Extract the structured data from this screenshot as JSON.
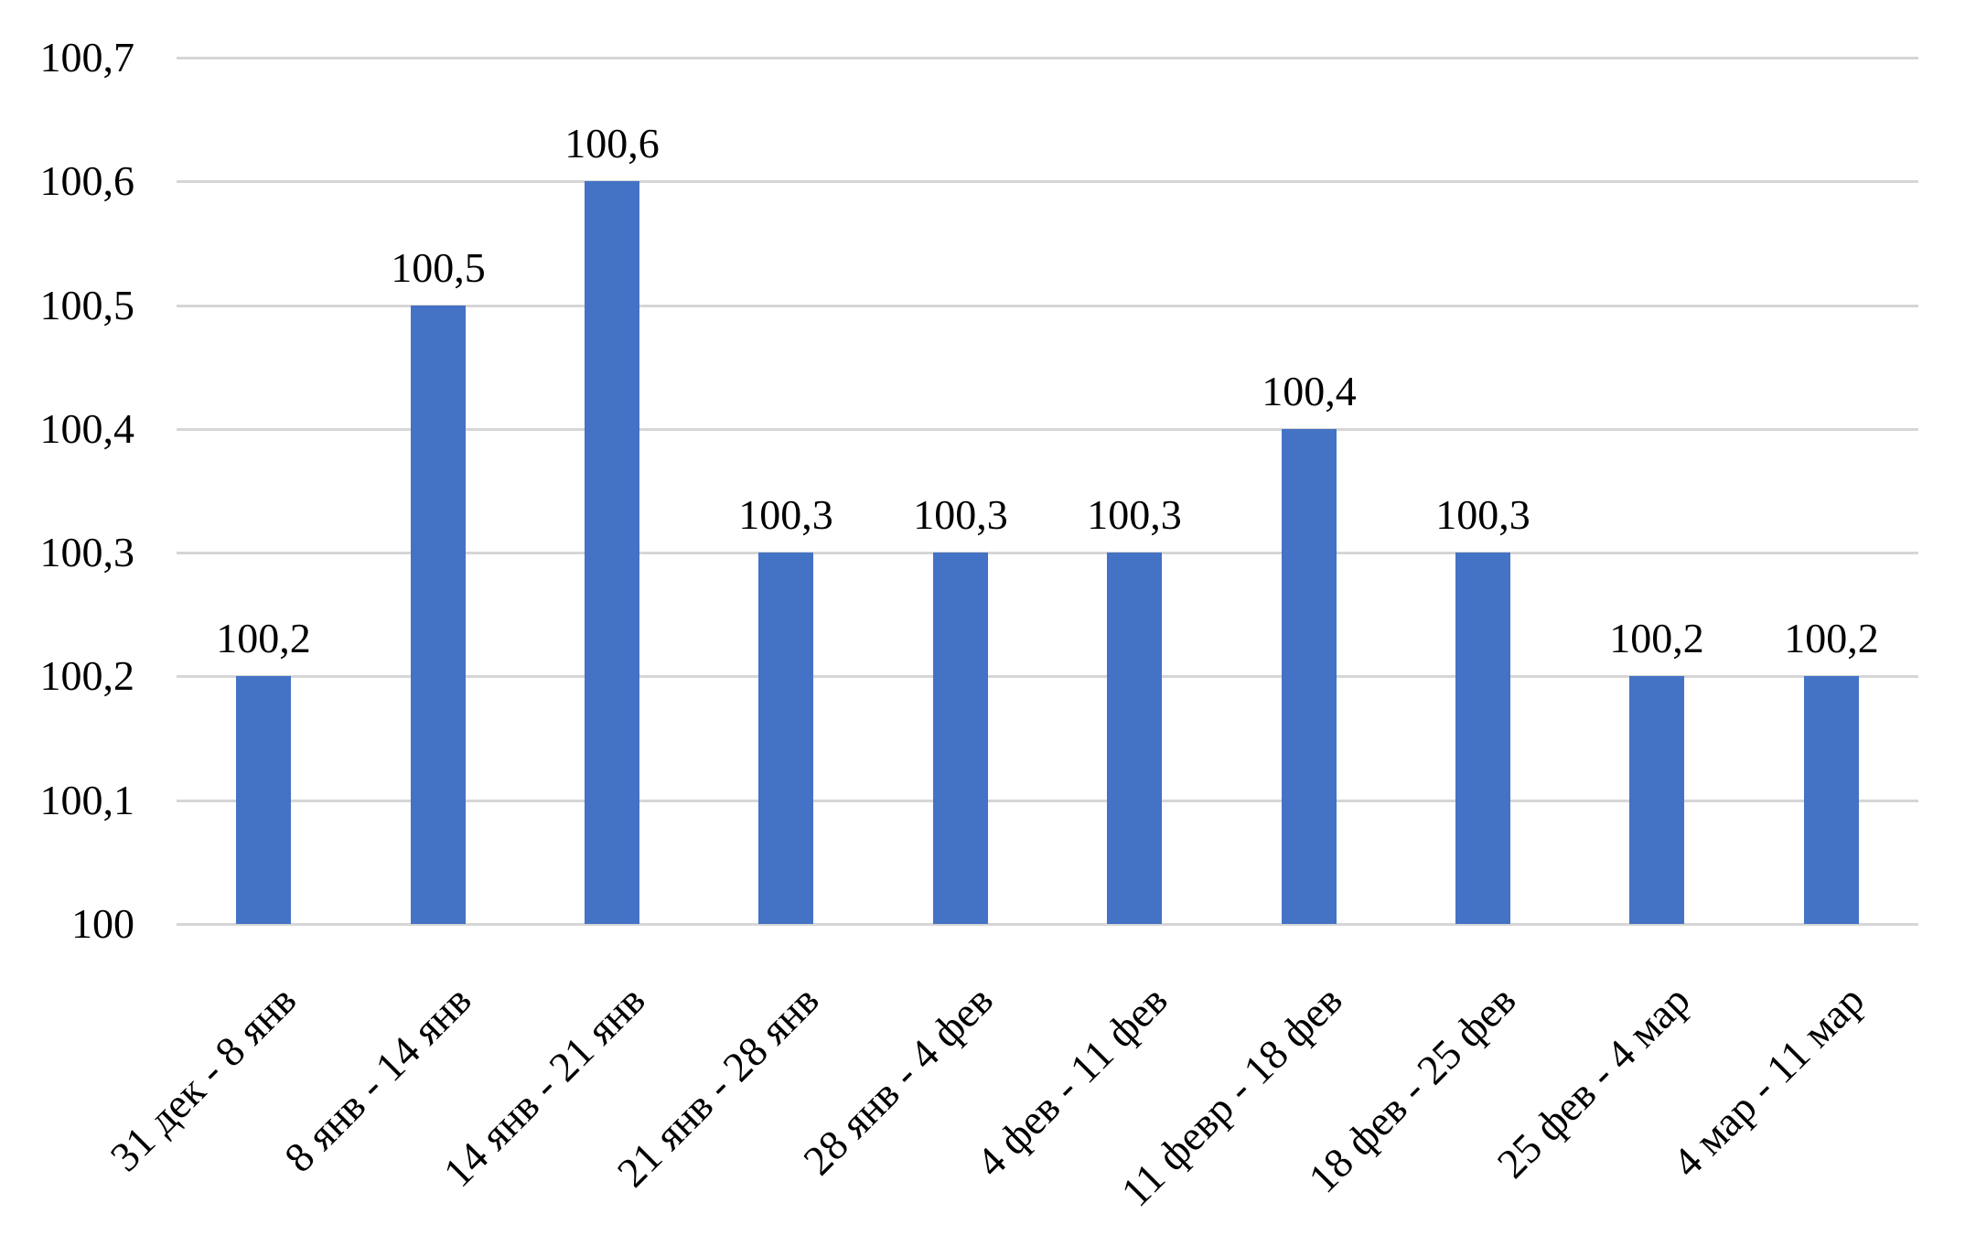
{
  "chart_data": {
    "type": "bar",
    "categories": [
      "31 дек - 8 янв",
      "8 янв - 14 янв",
      "14 янв - 21 янв",
      "21 янв - 28 янв",
      "28 янв - 4 фев",
      "4 фев - 11 фев",
      "11 февр - 18 фев",
      "18 фев - 25 фев",
      "25 фев - 4 мар",
      "4 мар - 11 мар"
    ],
    "values": [
      100.2,
      100.5,
      100.6,
      100.3,
      100.3,
      100.3,
      100.4,
      100.3,
      100.2,
      100.2
    ],
    "value_labels": [
      "100,2",
      "100,5",
      "100,6",
      "100,3",
      "100,3",
      "100,3",
      "100,4",
      "100,3",
      "100,2",
      "100,2"
    ],
    "y_axis": {
      "min": 100,
      "max": 100.7,
      "step": 0.1,
      "tick_labels": [
        "100",
        "100,1",
        "100,2",
        "100,3",
        "100,4",
        "100,5",
        "100,6",
        "100,7"
      ]
    },
    "grid": true,
    "legend": false,
    "xlabel": "",
    "ylabel": "",
    "colors": {
      "bar": "#4472C4",
      "gridline": "#D6D6D6",
      "text": "#000000",
      "background": "#FFFFFF"
    }
  }
}
